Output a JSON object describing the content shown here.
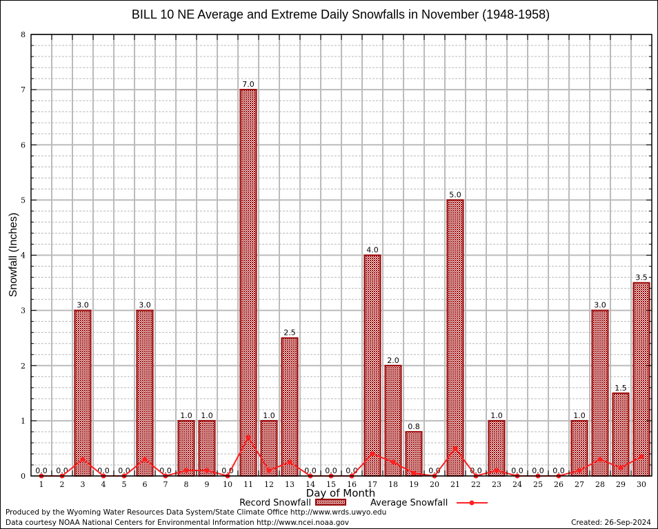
{
  "chart_data": {
    "type": "bar",
    "title": "BILL 10 NE Average and Extreme Daily Snowfalls in November (1948-1958)",
    "xlabel": "Day of Month",
    "ylabel": "Snowfall (Inches)",
    "ylim": [
      0,
      8
    ],
    "yticks": [
      "0",
      "1",
      "2",
      "3",
      "4",
      "5",
      "6",
      "7",
      "8"
    ],
    "grid": true,
    "categories": [
      "1",
      "2",
      "3",
      "4",
      "5",
      "6",
      "7",
      "8",
      "9",
      "10",
      "11",
      "12",
      "13",
      "14",
      "15",
      "16",
      "17",
      "18",
      "19",
      "20",
      "21",
      "22",
      "23",
      "24",
      "25",
      "26",
      "27",
      "28",
      "29",
      "30"
    ],
    "series": [
      {
        "name": "Record Snowfall",
        "type": "bar",
        "color": "#990000",
        "values": [
          0.0,
          0.0,
          3.0,
          0.0,
          0.0,
          3.0,
          0.0,
          1.0,
          1.0,
          0.0,
          7.0,
          1.0,
          2.5,
          0.0,
          0.0,
          0.0,
          4.0,
          2.0,
          0.8,
          0.0,
          5.0,
          0.0,
          1.0,
          0.0,
          0.0,
          0.0,
          1.0,
          3.0,
          1.5,
          3.5
        ],
        "labels": [
          "0.0",
          "0.0",
          "3.0",
          "0.0",
          "0.0",
          "3.0",
          "0.0",
          "1.0",
          "1.0",
          "0.0",
          "7.0",
          "1.0",
          "2.5",
          "0.0",
          "0.0",
          "0.0",
          "4.0",
          "2.0",
          "0.8",
          "0.0",
          "5.0",
          "0.0",
          "1.0",
          "0.0",
          "0.0",
          "0.0",
          "1.0",
          "3.0",
          "1.5",
          "3.5"
        ]
      },
      {
        "name": "Average Snowfall",
        "type": "line",
        "color": "#ff2020",
        "values": [
          0.0,
          0.0,
          0.3,
          0.0,
          0.0,
          0.3,
          0.0,
          0.1,
          0.1,
          0.0,
          0.7,
          0.1,
          0.25,
          0.0,
          0.0,
          0.0,
          0.4,
          0.25,
          0.05,
          0.0,
          0.5,
          0.0,
          0.1,
          0.0,
          0.0,
          0.0,
          0.1,
          0.3,
          0.15,
          0.35
        ]
      }
    ],
    "legend": {
      "position": "bottom-center",
      "record_label": "Record Snowfall",
      "average_label": "Average Snowfall"
    }
  },
  "footer": {
    "produced_by": "Produced by the Wyoming Water Resources Data System/State Climate Office http://www.wrds.uwyo.edu",
    "courtesy": "Data courtesy NOAA National Centers for Environmental Information http://www.ncei.noaa.gov",
    "created": "Created:  26-Sep-2024"
  }
}
